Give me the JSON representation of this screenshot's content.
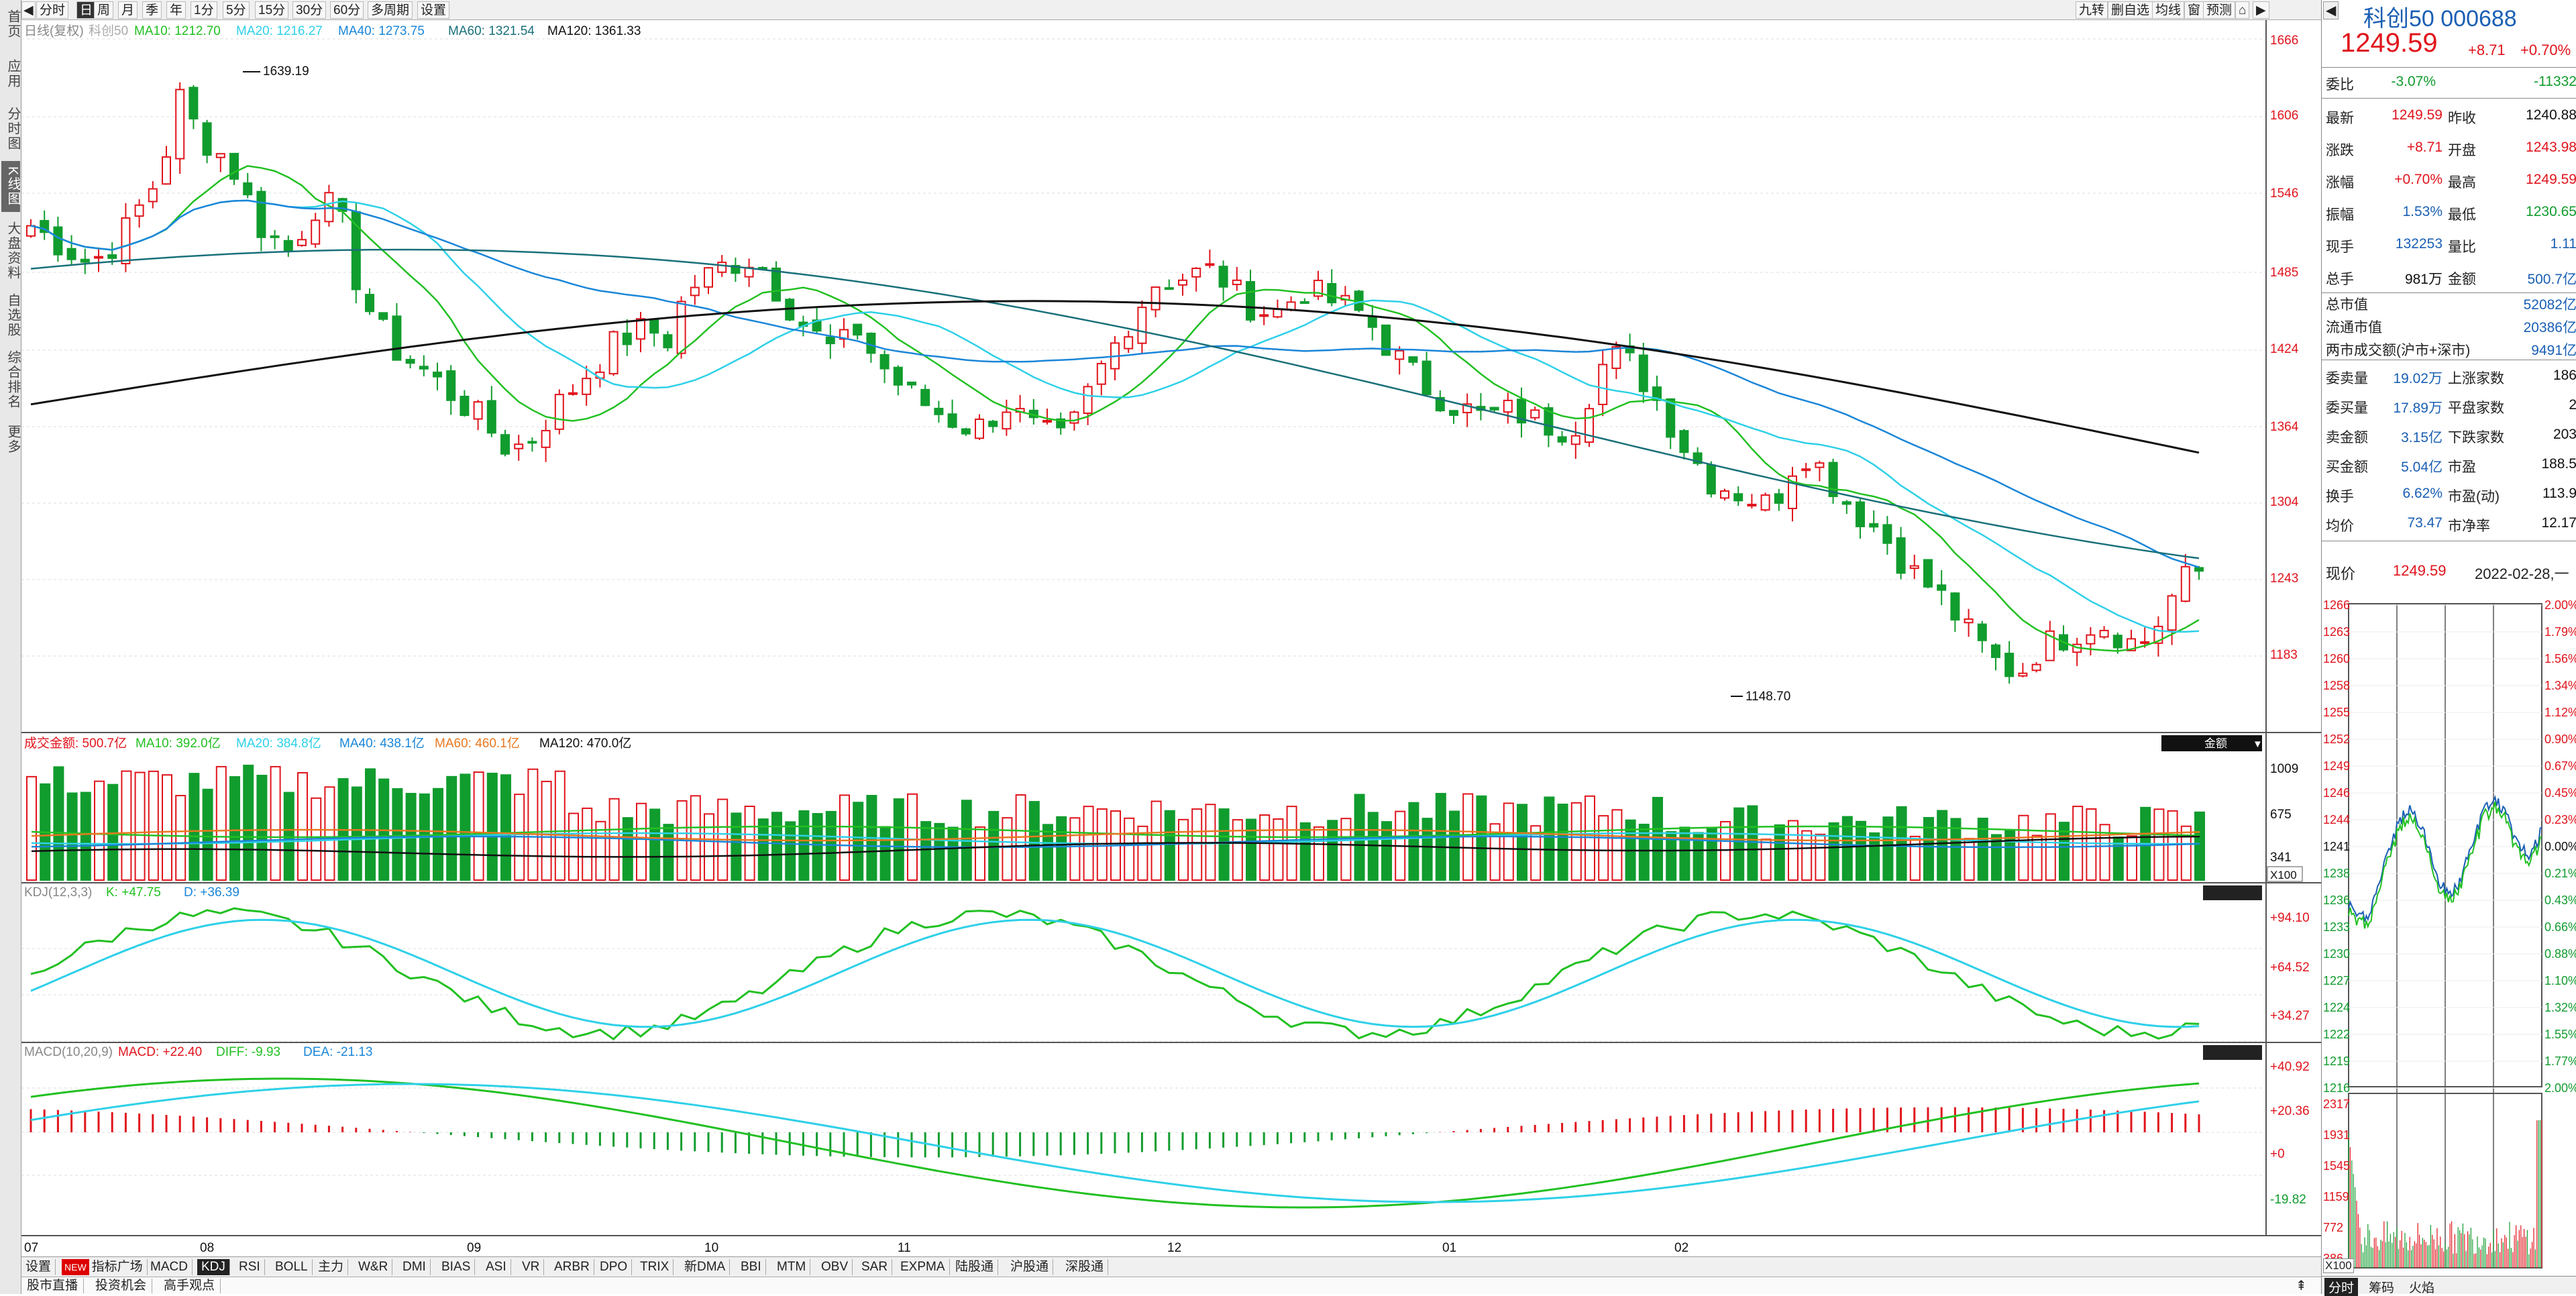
{
  "leftbar": {
    "items": [
      "首页",
      "应用",
      "分时图",
      "K线图",
      "大盘资料",
      "自选股",
      "综合排名",
      "更多"
    ]
  },
  "toolbar": {
    "periods": [
      "分时",
      "日",
      "周",
      "月",
      "季",
      "年",
      "1分",
      "5分",
      "15分",
      "30分",
      "60分",
      "多周期",
      "设置"
    ],
    "selected_period": "日",
    "right_buttons": [
      "九转",
      "删自选",
      "均线",
      "窗",
      "预测"
    ]
  },
  "main": {
    "legend": {
      "name": "日线(复权)",
      "index": "科创50",
      "ma10": "MA10: 1212.70",
      "ma20": "MA20: 1216.27",
      "ma40": "MA40: 1273.75",
      "ma60": "MA60: 1321.54",
      "ma120": "MA120: 1361.33"
    },
    "price_axis": [
      "1666",
      "1606",
      "1546",
      "1485",
      "1424",
      "1364",
      "1304",
      "1243",
      "1183"
    ],
    "high_label": "1639.19",
    "low_label": "1148.70",
    "volume_legend": {
      "name": "成交金额: 500.7亿",
      "ma10": "MA10: 392.0亿",
      "ma20": "MA20: 384.8亿",
      "ma40": "MA40: 438.1亿",
      "ma60": "MA60: 460.1亿",
      "ma120": "MA120: 470.0亿"
    },
    "volume_axis": [
      "1009",
      "675",
      "341"
    ],
    "volume_unit": "X100",
    "volume_dropdown": "金额",
    "kdj_legend": {
      "name": "KDJ(12,3,3)",
      "k": "K: +47.75",
      "d": "D: +36.39"
    },
    "kdj_axis": [
      "+94.10",
      "+64.52",
      "+34.27"
    ],
    "macd_legend": {
      "name": "MACD(10,20,9)",
      "macd": "MACD: +22.40",
      "diff": "DIFF: -9.93",
      "dea": "DEA: -21.13"
    },
    "macd_axis": [
      "+40.92",
      "+20.36",
      "+0",
      "-19.82"
    ],
    "date_axis": [
      "07",
      "08",
      "09",
      "10",
      "11",
      "12",
      "01",
      "02"
    ]
  },
  "indicator_tabs": {
    "settings": "设置",
    "new_badge": "NEW",
    "items": [
      "指标广场",
      "MACD",
      "KDJ",
      "RSI",
      "BOLL",
      "主力",
      "W&R",
      "DMI",
      "BIAS",
      "ASI",
      "VR",
      "ARBR",
      "DPO",
      "TRIX",
      "新DMA",
      "BBI",
      "MTM",
      "OBV",
      "SAR",
      "EXPMA",
      "陆股通",
      "沪股通",
      "深股通"
    ],
    "selected": "KDJ"
  },
  "status_tabs": [
    "股市直播",
    "投资机会",
    "高手观点"
  ],
  "quote": {
    "name_code": "科创50 000688",
    "price": "1249.59",
    "change": "+8.71",
    "change_pct": "+0.70%",
    "weibi_label": "委比",
    "weibi_pct": "-3.07%",
    "weibi_val": "-11332",
    "rows": [
      [
        "最新",
        "1249.59",
        "red",
        "昨收",
        "1240.88",
        "dark"
      ],
      [
        "涨跌",
        "+8.71",
        "red",
        "开盘",
        "1243.98",
        "red"
      ],
      [
        "涨幅",
        "+0.70%",
        "red",
        "最高",
        "1249.59",
        "red"
      ],
      [
        "振幅",
        "1.53%",
        "blue",
        "最低",
        "1230.65",
        "green"
      ],
      [
        "现手",
        "132253",
        "blue",
        "量比",
        "1.11",
        "blue"
      ],
      [
        "总手",
        "981万",
        "dark",
        "金额",
        "500.7亿",
        "blue"
      ]
    ],
    "cap_rows": [
      [
        "总市值",
        "52082亿"
      ],
      [
        "流通市值",
        "20386亿"
      ],
      [
        "两市成交额(沪市+深市)",
        "9491亿"
      ]
    ],
    "stat_rows": [
      [
        "委卖量",
        "19.02万",
        "上涨家数",
        "186"
      ],
      [
        "委买量",
        "17.89万",
        "平盘家数",
        "2"
      ],
      [
        "卖金额",
        "3.15亿",
        "下跌家数",
        "203"
      ],
      [
        "买金额",
        "5.04亿",
        "市盈",
        "188.5"
      ],
      [
        "换手",
        "6.62%",
        "市盈(动)",
        "113.9"
      ],
      [
        "均价",
        "73.47",
        "市净率",
        "12.17"
      ]
    ],
    "now_label": "现价",
    "now_price": "1249.59",
    "date": "2022-02-28,一"
  },
  "intraday": {
    "left_axis": [
      "1266",
      "1263",
      "1260",
      "1258",
      "1255",
      "1252",
      "1249",
      "1246",
      "1244",
      "1241",
      "1238",
      "1236",
      "1233",
      "1230",
      "1227",
      "1224",
      "1222",
      "1219",
      "1216"
    ],
    "right_axis": [
      "2.00%",
      "1.79%",
      "1.56%",
      "1.34%",
      "1.12%",
      "0.90%",
      "0.67%",
      "0.45%",
      "0.23%",
      "0.00%",
      "0.21%",
      "0.43%",
      "0.66%",
      "0.88%",
      "1.10%",
      "1.32%",
      "1.55%",
      "1.77%",
      "2.00%"
    ],
    "vol_axis": [
      "2317",
      "1931",
      "1545",
      "1159",
      "772",
      "386"
    ],
    "vol_unit": "X100",
    "tabs": [
      "分时",
      "筹码",
      "火焰"
    ]
  },
  "colors": {
    "up": "#e0141c",
    "down": "#119c2e",
    "ma10": "#22c022",
    "ma20": "#2ed0e8",
    "ma40": "#1a86d8",
    "ma60": "#19707a",
    "ma120": "#111111"
  }
}
